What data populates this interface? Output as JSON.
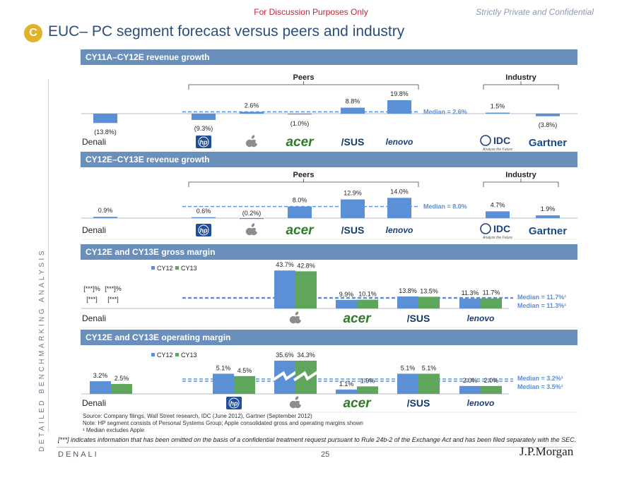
{
  "header": {
    "discussion": "For Discussion Purposes Only",
    "confidential": "Strictly Private and Confidential",
    "badge": "C",
    "title": "EUC– PC segment forecast versus peers and industry"
  },
  "side_label": "DETAILED BENCHMARKING ANALYSIS",
  "legend": {
    "cy12": "CY12",
    "cy13": "CY13"
  },
  "colors": {
    "blue": "#5b8fd6",
    "green": "#5fa65c",
    "header": "#6a8fba",
    "median": "#5b8fd6"
  },
  "logos": {
    "hp": "hp",
    "apple": "apple-logo",
    "acer": "acer",
    "asus": "/SUS",
    "lenovo": "lenovo",
    "idc": "IDC",
    "idc_sub": "Analyze the Future",
    "gartner": "Gartner"
  },
  "chart_data": [
    {
      "type": "bar",
      "title": "CY11A–CY12E revenue growth",
      "group_labels": {
        "peers": "Peers",
        "industry": "Industry"
      },
      "company_label": "Denali",
      "categories": [
        "Denali",
        "HP",
        "Apple",
        "Acer",
        "ASUS",
        "Lenovo",
        "IDC",
        "Gartner"
      ],
      "values": [
        -13.8,
        -9.3,
        2.6,
        -1.0,
        8.8,
        19.8,
        1.5,
        -3.8
      ],
      "labels": [
        "(13.8%)",
        "(9.3%)",
        "2.6%",
        "(1.0%)",
        "8.8%",
        "19.8%",
        "1.5%",
        "(3.8%)"
      ],
      "median_label": "Median = 2.6%",
      "median": 2.6
    },
    {
      "type": "bar",
      "title": "CY12E–CY13E revenue growth",
      "group_labels": {
        "peers": "Peers",
        "industry": "Industry"
      },
      "company_label": "Denali",
      "categories": [
        "Denali",
        "HP",
        "Apple",
        "Acer",
        "ASUS",
        "Lenovo",
        "IDC",
        "Gartner"
      ],
      "values": [
        0.9,
        0.6,
        -0.2,
        8.0,
        12.9,
        14.0,
        4.7,
        1.9
      ],
      "labels": [
        "0.9%",
        "0.6%",
        "(0.2%)",
        "8.0%",
        "12.9%",
        "14.0%",
        "4.7%",
        "1.9%"
      ],
      "median_label": "Median = 8.0%",
      "median": 8.0
    },
    {
      "type": "bar",
      "title": "CY12E and CY13E gross margin",
      "company_label": "Denali",
      "categories": [
        "Denali",
        "Apple",
        "Acer",
        "ASUS",
        "Lenovo"
      ],
      "series": [
        {
          "name": "CY12",
          "values": [
            null,
            43.7,
            9.9,
            13.8,
            11.3
          ],
          "labels": [
            "[***]%",
            "43.7%",
            "9.9%",
            "13.8%",
            "11.3%"
          ]
        },
        {
          "name": "CY13",
          "values": [
            null,
            42.8,
            10.1,
            13.5,
            11.7
          ],
          "labels": [
            "[***]%",
            "42.8%",
            "10.1%",
            "13.5%",
            "11.7%"
          ]
        }
      ],
      "denali_extra": [
        "[***]",
        "[***]"
      ],
      "median_labels": [
        "Median = 11.7%¹",
        "Median = 11.3%¹"
      ],
      "medians": [
        11.7,
        11.3
      ]
    },
    {
      "type": "bar",
      "title": "CY12E and CY13E operating margin",
      "company_label": "Denali",
      "categories": [
        "Denali",
        "HP",
        "Apple",
        "Acer",
        "ASUS",
        "Lenovo"
      ],
      "series": [
        {
          "name": "CY12",
          "values": [
            3.2,
            5.1,
            35.6,
            1.1,
            5.1,
            2.0
          ],
          "labels": [
            "3.2%",
            "5.1%",
            "35.6%",
            "1.1%",
            "5.1%",
            "2.0%"
          ]
        },
        {
          "name": "CY13",
          "values": [
            2.5,
            4.5,
            34.3,
            1.9,
            5.1,
            2.0
          ],
          "labels": [
            "2.5%",
            "4.5%",
            "34.3%",
            "1.9%",
            "5.1%",
            "2.0%"
          ]
        }
      ],
      "median_labels": [
        "Median = 3.2%¹",
        "Median = 3.5%¹"
      ],
      "medians": [
        3.2,
        3.5
      ]
    }
  ],
  "notes": {
    "source": "Source: Company filings, Wall Street research, IDC (June 2012), Gartner (September 2012)",
    "note": "Note: HP segment consists of Personal Systems Group; Apple consolidated gross and operating margins shown",
    "footnote": "¹ Median excludes Apple",
    "omitted": "[***] indicates information that has been omitted on the basis of a confidential treatment request pursuant to Rule 24b-2 of the Exchange Act and has been filed separately with the SEC."
  },
  "footer": {
    "left": "DENALI",
    "page": "25",
    "brand": "J.P.Morgan"
  }
}
